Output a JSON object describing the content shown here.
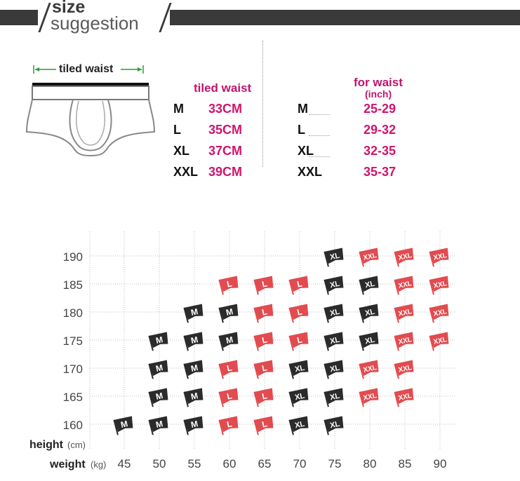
{
  "header": {
    "line1": "size",
    "line2": "suggestion"
  },
  "diagram": {
    "label": "tiled waist"
  },
  "table_cm": {
    "title": "tiled waist",
    "rows": [
      {
        "size": "M",
        "value": "33CM"
      },
      {
        "size": "L",
        "value": "35CM"
      },
      {
        "size": "XL",
        "value": "37CM"
      },
      {
        "size": "XXL",
        "value": "39CM"
      }
    ]
  },
  "table_inch": {
    "title": "for waist",
    "subtitle": "(inch)",
    "rows": [
      {
        "size": "M",
        "value": "25-29"
      },
      {
        "size": "L",
        "value": "29-32"
      },
      {
        "size": "XL",
        "value": "32-35"
      },
      {
        "size": "XXL",
        "value": "35-37"
      }
    ]
  },
  "chart_data": {
    "type": "table",
    "ylabel": "height",
    "yunit": "(cm)",
    "xlabel": "weight",
    "xunit": "(kg)",
    "x": [
      45,
      50,
      55,
      60,
      65,
      70,
      75,
      80,
      85,
      90
    ],
    "y": [
      160,
      165,
      170,
      175,
      180,
      185,
      190
    ],
    "grid": true,
    "colors": {
      "M": "#2b2b2b",
      "L": "#e24b4f",
      "XL": "#2b2b2b",
      "XXL": "#e24b4f"
    },
    "cells": [
      {
        "height": 160,
        "weight": 45,
        "size": "M"
      },
      {
        "height": 160,
        "weight": 50,
        "size": "M"
      },
      {
        "height": 160,
        "weight": 55,
        "size": "M"
      },
      {
        "height": 160,
        "weight": 60,
        "size": "L"
      },
      {
        "height": 160,
        "weight": 65,
        "size": "L"
      },
      {
        "height": 160,
        "weight": 70,
        "size": "XL"
      },
      {
        "height": 160,
        "weight": 75,
        "size": "XL"
      },
      {
        "height": 165,
        "weight": 50,
        "size": "M"
      },
      {
        "height": 165,
        "weight": 55,
        "size": "M"
      },
      {
        "height": 165,
        "weight": 60,
        "size": "L"
      },
      {
        "height": 165,
        "weight": 65,
        "size": "L"
      },
      {
        "height": 165,
        "weight": 70,
        "size": "XL"
      },
      {
        "height": 165,
        "weight": 75,
        "size": "XL"
      },
      {
        "height": 165,
        "weight": 80,
        "size": "XXL"
      },
      {
        "height": 165,
        "weight": 85,
        "size": "XXL"
      },
      {
        "height": 170,
        "weight": 50,
        "size": "M"
      },
      {
        "height": 170,
        "weight": 55,
        "size": "M"
      },
      {
        "height": 170,
        "weight": 60,
        "size": "L"
      },
      {
        "height": 170,
        "weight": 65,
        "size": "L"
      },
      {
        "height": 170,
        "weight": 70,
        "size": "XL"
      },
      {
        "height": 170,
        "weight": 75,
        "size": "XL"
      },
      {
        "height": 170,
        "weight": 80,
        "size": "XXL"
      },
      {
        "height": 170,
        "weight": 85,
        "size": "XXL"
      },
      {
        "height": 175,
        "weight": 50,
        "size": "M"
      },
      {
        "height": 175,
        "weight": 55,
        "size": "M"
      },
      {
        "height": 175,
        "weight": 60,
        "size": "M"
      },
      {
        "height": 175,
        "weight": 65,
        "size": "L"
      },
      {
        "height": 175,
        "weight": 70,
        "size": "L"
      },
      {
        "height": 175,
        "weight": 75,
        "size": "XL"
      },
      {
        "height": 175,
        "weight": 80,
        "size": "XL"
      },
      {
        "height": 175,
        "weight": 85,
        "size": "XXL"
      },
      {
        "height": 175,
        "weight": 90,
        "size": "XXL"
      },
      {
        "height": 180,
        "weight": 55,
        "size": "M"
      },
      {
        "height": 180,
        "weight": 60,
        "size": "M"
      },
      {
        "height": 180,
        "weight": 65,
        "size": "L"
      },
      {
        "height": 180,
        "weight": 70,
        "size": "L"
      },
      {
        "height": 180,
        "weight": 75,
        "size": "XL"
      },
      {
        "height": 180,
        "weight": 80,
        "size": "XL"
      },
      {
        "height": 180,
        "weight": 85,
        "size": "XXL"
      },
      {
        "height": 180,
        "weight": 90,
        "size": "XXL"
      },
      {
        "height": 185,
        "weight": 60,
        "size": "L"
      },
      {
        "height": 185,
        "weight": 65,
        "size": "L"
      },
      {
        "height": 185,
        "weight": 70,
        "size": "L"
      },
      {
        "height": 185,
        "weight": 75,
        "size": "XL"
      },
      {
        "height": 185,
        "weight": 80,
        "size": "XL"
      },
      {
        "height": 185,
        "weight": 85,
        "size": "XXL"
      },
      {
        "height": 185,
        "weight": 90,
        "size": "XXL"
      },
      {
        "height": 190,
        "weight": 75,
        "size": "XL"
      },
      {
        "height": 190,
        "weight": 80,
        "size": "XXL"
      },
      {
        "height": 190,
        "weight": 85,
        "size": "XXL"
      },
      {
        "height": 190,
        "weight": 90,
        "size": "XXL"
      }
    ]
  }
}
